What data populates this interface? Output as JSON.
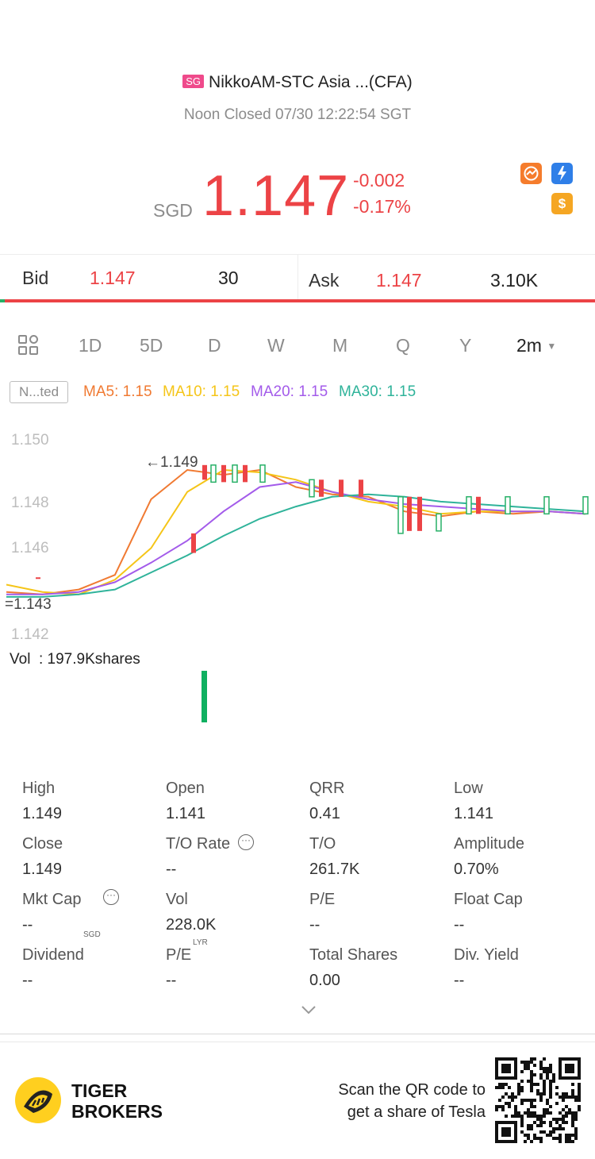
{
  "header": {
    "market_badge": "SG",
    "title": "NikkoAM-STC Asia ...(CFA)",
    "subtitle": "Noon Closed 07/30 12:22:54 SGT",
    "currency": "SGD",
    "price": "1.147",
    "change": "-0.002",
    "change_pct": "-0.17%",
    "icons": [
      "chart-badge-icon",
      "flash-icon",
      "dollar-icon"
    ]
  },
  "bidask": {
    "bid_label": "Bid",
    "bid_price": "1.147",
    "bid_size": "30",
    "ask_label": "Ask",
    "ask_price": "1.147",
    "ask_size": "3.10K"
  },
  "tabs": [
    "1D",
    "5D",
    "D",
    "W",
    "M",
    "Q",
    "Y"
  ],
  "interval": "2m",
  "ma": {
    "notes_label": "N...ted",
    "ma5": "MA5: 1.15",
    "ma10": "MA10: 1.15",
    "ma20": "MA20: 1.15",
    "ma30": "MA30: 1.15",
    "colors": {
      "ma5": "#f07a32",
      "ma10": "#f5c518",
      "ma20": "#a35bea",
      "ma30": "#2fb39a"
    }
  },
  "chart": {
    "y_ticks": [
      "1.150",
      "1.148",
      "1.146",
      "1.142"
    ],
    "high_marker": "1.149",
    "low_marker": "1.143",
    "vol_label": "Vol  : 197.9Kshares"
  },
  "chart_data": {
    "type": "candlestick",
    "ylim": [
      1.142,
      1.15
    ],
    "candles": [
      {
        "open": 1.1443,
        "close": 1.1443,
        "high": 1.1443,
        "low": 1.1443,
        "color": "red"
      },
      {
        "open": 1.1461,
        "close": 1.1453,
        "high": 1.1461,
        "low": 1.1453,
        "color": "red"
      },
      {
        "open": 1.1489,
        "close": 1.1483,
        "high": 1.1489,
        "low": 1.1483,
        "color": "red"
      },
      {
        "open": 1.1482,
        "close": 1.1489,
        "high": 1.1489,
        "low": 1.1482,
        "color": "green"
      },
      {
        "open": 1.1489,
        "close": 1.1482,
        "high": 1.1489,
        "low": 1.1482,
        "color": "red"
      },
      {
        "open": 1.1482,
        "close": 1.1489,
        "high": 1.1489,
        "low": 1.1482,
        "color": "green"
      },
      {
        "open": 1.1489,
        "close": 1.1482,
        "high": 1.1489,
        "low": 1.1482,
        "color": "red"
      },
      {
        "open": 1.1482,
        "close": 1.1489,
        "high": 1.1489,
        "low": 1.1482,
        "color": "green"
      },
      {
        "open": 1.1476,
        "close": 1.1483,
        "high": 1.1483,
        "low": 1.1476,
        "color": "green"
      },
      {
        "open": 1.1483,
        "close": 1.1476,
        "high": 1.1483,
        "low": 1.1476,
        "color": "red"
      },
      {
        "open": 1.1483,
        "close": 1.1476,
        "high": 1.1483,
        "low": 1.1476,
        "color": "red"
      },
      {
        "open": 1.1483,
        "close": 1.1476,
        "high": 1.1483,
        "low": 1.1476,
        "color": "red"
      },
      {
        "open": 1.1461,
        "close": 1.1476,
        "high": 1.1476,
        "low": 1.1461,
        "color": "green"
      },
      {
        "open": 1.1476,
        "close": 1.1462,
        "high": 1.1476,
        "low": 1.1462,
        "color": "red"
      },
      {
        "open": 1.1476,
        "close": 1.1462,
        "high": 1.1476,
        "low": 1.1462,
        "color": "red"
      },
      {
        "open": 1.1462,
        "close": 1.1469,
        "high": 1.1469,
        "low": 1.1462,
        "color": "green"
      },
      {
        "open": 1.1469,
        "close": 1.1476,
        "high": 1.1476,
        "low": 1.1469,
        "color": "green"
      },
      {
        "open": 1.1476,
        "close": 1.1469,
        "high": 1.1476,
        "low": 1.1469,
        "color": "red"
      },
      {
        "open": 1.1469,
        "close": 1.1476,
        "high": 1.1476,
        "low": 1.1469,
        "color": "green"
      },
      {
        "open": 1.1469,
        "close": 1.1476,
        "high": 1.1476,
        "low": 1.1469,
        "color": "green"
      },
      {
        "open": 1.1469,
        "close": 1.1476,
        "high": 1.1476,
        "low": 1.1469,
        "color": "green"
      }
    ],
    "volume": [
      {
        "value": 197.9,
        "color": "green"
      }
    ],
    "ma_series": [
      {
        "name": "MA5",
        "color": "#f07a32",
        "values": [
          1.1437,
          1.1436,
          1.1438,
          1.1444,
          1.1475,
          1.1487,
          1.1485,
          1.1487,
          1.148,
          1.1477,
          1.1476,
          1.147,
          1.1468,
          1.147,
          1.1469,
          1.147,
          1.1469
        ]
      },
      {
        "name": "MA10",
        "color": "#f5c518",
        "values": [
          1.144,
          1.1437,
          1.1436,
          1.1442,
          1.1455,
          1.1478,
          1.1487,
          1.1486,
          1.1483,
          1.1478,
          1.1474,
          1.1472,
          1.1469,
          1.147,
          1.147,
          1.147,
          1.1469
        ]
      },
      {
        "name": "MA20",
        "color": "#a35bea",
        "values": [
          1.1436,
          1.1436,
          1.1437,
          1.1441,
          1.1449,
          1.1458,
          1.147,
          1.148,
          1.1482,
          1.1478,
          1.1475,
          1.1473,
          1.1472,
          1.1471,
          1.147,
          1.147,
          1.1469
        ]
      },
      {
        "name": "MA30",
        "color": "#2fb39a",
        "values": [
          1.1435,
          1.1435,
          1.1436,
          1.1438,
          1.1445,
          1.1452,
          1.146,
          1.1467,
          1.1472,
          1.1476,
          1.1477,
          1.1476,
          1.1474,
          1.1473,
          1.1472,
          1.1471,
          1.147
        ]
      }
    ]
  },
  "stats": [
    {
      "label": "High",
      "value": "1.149"
    },
    {
      "label": "Open",
      "value": "1.141"
    },
    {
      "label": "QRR",
      "value": "0.41"
    },
    {
      "label": "Low",
      "value": "1.141"
    },
    {
      "label": "Close",
      "value": "1.149"
    },
    {
      "label": "T/O Rate",
      "value": "--"
    },
    {
      "label": "T/O",
      "value": "261.7K"
    },
    {
      "label": "Amplitude",
      "value": "0.70%"
    },
    {
      "label": "Mkt Cap",
      "value": "--"
    },
    {
      "label": "Vol",
      "value": "228.0K"
    },
    {
      "label": "P/E",
      "value": "--"
    },
    {
      "label": "Float Cap",
      "value": "--"
    },
    {
      "label": "Dividend",
      "value": "--"
    },
    {
      "label": "P/E",
      "value": "--"
    },
    {
      "label": "Total Shares",
      "value": "0.00"
    },
    {
      "label": "Div. Yield",
      "value": "--"
    }
  ],
  "stat_superscripts": {
    "mkt_cap": "SGD",
    "pe_lyr": "LYR"
  },
  "footer": {
    "brand_line1": "TIGER",
    "brand_line2": "BROKERS",
    "qr_line1": "Scan the QR code to",
    "qr_line2": "get a share of Tesla"
  }
}
